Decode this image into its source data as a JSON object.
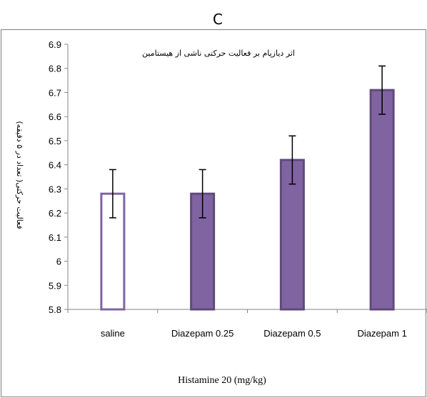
{
  "panel_label": "C",
  "chart_data": {
    "type": "bar",
    "title": "اثر دیازپام بر فعالیت حرکتی ناشی از هیستامین",
    "xlabel": "Histamine 20 (mg/kg)",
    "ylabel": "فعالیت حرکتی( تعداد در ۵ دقیقه)",
    "categories": [
      "saline",
      "Diazepam 0.25",
      "Diazepam 0.5",
      "Diazepam 1"
    ],
    "values": [
      6.28,
      6.28,
      6.42,
      6.71
    ],
    "error": [
      0.1,
      0.1,
      0.1,
      0.1
    ],
    "fill": [
      "hollow",
      "filled",
      "filled",
      "filled"
    ],
    "ylim": [
      5.8,
      6.9
    ],
    "yticks": [
      "5.8",
      "5.9",
      "6",
      "6.1",
      "6.2",
      "6.3",
      "6.4",
      "6.5",
      "6.6",
      "6.7",
      "6.8",
      "6.9"
    ],
    "grid": false,
    "colors": {
      "bar_fill": "#8064a2",
      "bar_edge": "#604a7b",
      "hollow_fill": "#ffffff"
    }
  }
}
